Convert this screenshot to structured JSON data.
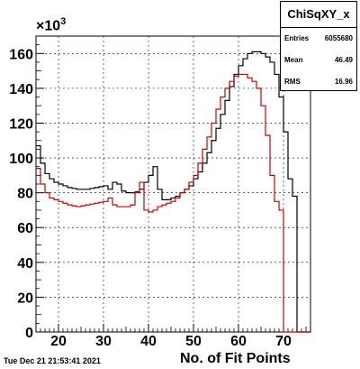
{
  "chart_data": {
    "type": "line",
    "title": "",
    "xlabel": "No. of Fit Points",
    "ylabel": "",
    "y_multiplier": "×10³",
    "xlim": [
      15,
      76
    ],
    "ylim": [
      0,
      170000
    ],
    "x_ticks": [
      "20",
      "30",
      "40",
      "50",
      "60",
      "70"
    ],
    "y_ticks": [
      "0",
      "20",
      "40",
      "60",
      "80",
      "100",
      "120",
      "140",
      "160"
    ],
    "grid": true,
    "bin_edges_start": 15,
    "bin_width": 1,
    "series": [
      {
        "color": "#000000",
        "values": [
          107000,
          97000,
          91000,
          88000,
          86000,
          85000,
          84000,
          83000,
          82500,
          82000,
          82000,
          82000,
          82500,
          83000,
          83500,
          84000,
          82000,
          86000,
          85000,
          81000,
          80000,
          80000,
          80500,
          82000,
          86000,
          90000,
          95000,
          82000,
          76000,
          76000,
          77000,
          78000,
          80000,
          82000,
          84000,
          88000,
          92000,
          97000,
          103000,
          110000,
          117000,
          125000,
          133000,
          141000,
          148000,
          153000,
          157000,
          160000,
          161000,
          161000,
          160000,
          158000,
          155000,
          148000,
          135000,
          115000,
          88000,
          78000,
          0,
          0,
          0
        ]
      },
      {
        "color": "#cc0000",
        "values": [
          94000,
          85000,
          80000,
          77000,
          76000,
          75000,
          74000,
          73000,
          72500,
          72000,
          72500,
          73000,
          73500,
          74000,
          74500,
          75000,
          77000,
          73000,
          72000,
          72000,
          72000,
          73000,
          80000,
          86000,
          70000,
          69000,
          70000,
          72000,
          73000,
          74000,
          75000,
          77000,
          80000,
          82000,
          86000,
          90000,
          97000,
          105000,
          112000,
          120000,
          128000,
          135000,
          140000,
          144000,
          147000,
          148000,
          148000,
          146000,
          144000,
          140000,
          130000,
          113000,
          90000,
          75000,
          70000,
          0,
          0,
          0,
          0,
          0,
          0
        ]
      }
    ]
  },
  "stats": {
    "title": "ChiSqXY_x",
    "rows": [
      {
        "label": "Entries",
        "value": "6055680"
      },
      {
        "label": "Mean",
        "value": "46.49"
      },
      {
        "label": "RMS",
        "value": "16.96"
      }
    ]
  },
  "footer": {
    "timestamp": "Tue Dec 21 21:53:41 2021"
  },
  "axis": {
    "exponent_base": "×10",
    "exponent_power": "3"
  }
}
